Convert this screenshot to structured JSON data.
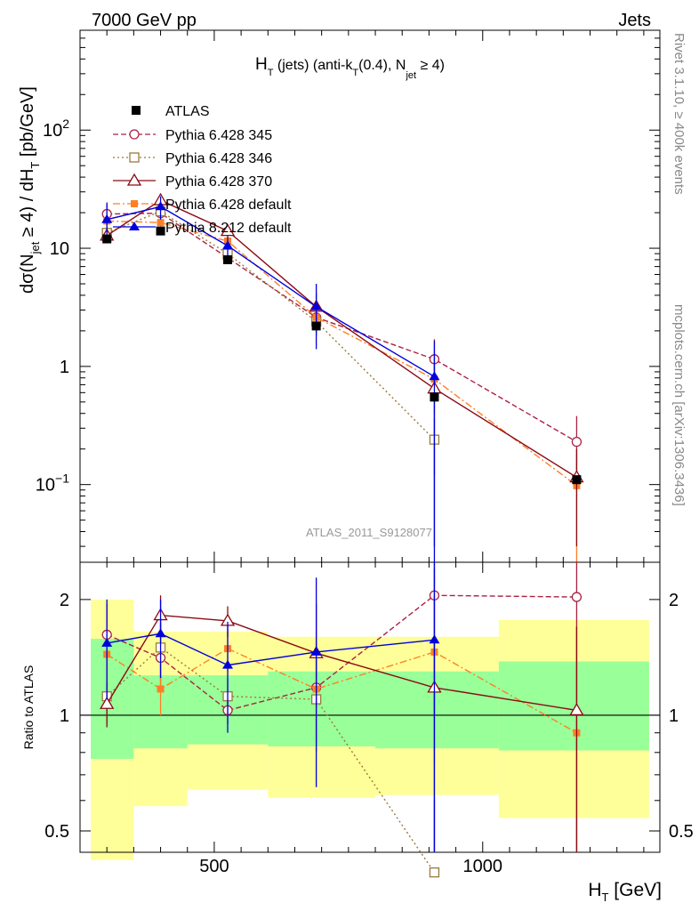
{
  "header": {
    "energy": "7000 GeV pp",
    "process": "Jets"
  },
  "side": {
    "rivet": "Rivet 3.1.10, ≥ 400k events",
    "source": "mcplots.cern.ch [arXiv:1306.3436]"
  },
  "colors": {
    "atlas": "#000000",
    "p345": "#aa2244",
    "p346": "#9a7a3a",
    "p370": "#8b0a14",
    "pdef": "#ff7f27",
    "p8": "#0000dd",
    "band_outer": "#ffff99",
    "band_inner": "#99ff99"
  },
  "chart_data": [
    {
      "type": "line",
      "panel": "main",
      "title": "H_T (jets) (anti-k_T(0.4), N_jet ≥ 4)",
      "title_parts": {
        "h": "H",
        "t1": "T",
        "mid": " (jets) (anti-k",
        "t2": "T",
        "mid2": "(0.4), N",
        "jet": "jet",
        "end": " ≥ 4)"
      },
      "ylabel_parts": {
        "a": "dσ(N",
        "jet": "jet",
        "b": " ≥ 4) / dH",
        "t": "T",
        "c": " [pb/GeV]"
      },
      "watermark": "ATLAS_2011_S9128077",
      "xscale": "linear",
      "xlim": [
        250,
        1330
      ],
      "yscale": "log",
      "ylim": [
        0.022,
        700
      ],
      "x_tick_labels": [
        500,
        1000
      ],
      "y_tick_labels": [
        {
          "v": 0.1,
          "base": "10",
          "exp": "−1"
        },
        {
          "v": 1,
          "base": "1",
          "exp": ""
        },
        {
          "v": 10,
          "base": "10",
          "exp": ""
        },
        {
          "v": 100,
          "base": "10",
          "exp": "2"
        }
      ],
      "x": [
        300,
        400,
        525,
        690,
        910,
        1175
      ],
      "series": [
        {
          "name": "ATLAS",
          "key": "atlas",
          "marker": "square",
          "dash": "",
          "line": false,
          "values": [
            12.0,
            14.0,
            8.0,
            2.2,
            0.55,
            0.11
          ],
          "err": [
            [
              11.5,
              12.5
            ],
            [
              13.5,
              14.5
            ],
            [
              7.7,
              8.3
            ],
            [
              2.1,
              2.3
            ],
            [
              0.52,
              0.58
            ],
            [
              0.105,
              0.115
            ]
          ]
        },
        {
          "name": "Pythia 6.428 345",
          "key": "p345",
          "marker": "circle",
          "dash": "6,3",
          "line": true,
          "values": [
            19.5,
            19.8,
            8.3,
            2.6,
            1.15,
            0.23
          ],
          "err": [
            [
              15.5,
              24.5
            ],
            [
              16.5,
              24.0
            ],
            [
              7.5,
              9.5
            ],
            [
              1.9,
              3.5
            ],
            [
              0.55,
              1.7
            ],
            [
              0.09,
              0.38
            ]
          ]
        },
        {
          "name": "Pythia 6.428 346",
          "key": "p346",
          "marker": "opensquare",
          "dash": "2,3",
          "line": true,
          "values": [
            13.5,
            20.5,
            9.0,
            2.4,
            0.24,
            null
          ],
          "err": [
            [
              11.5,
              16.0
            ],
            [
              17.0,
              24.0
            ],
            [
              8.0,
              10.5
            ],
            [
              1.8,
              3.2
            ],
            [
              0.12,
              0.36
            ],
            null
          ]
        },
        {
          "name": "Pythia 6.428 370",
          "key": "p370",
          "marker": "triangle",
          "dash": "",
          "line": true,
          "values": [
            12.8,
            25.5,
            14.0,
            3.2,
            0.65,
            0.115
          ],
          "err": [
            [
              11.0,
              15.0
            ],
            [
              22.0,
              29.0
            ],
            [
              12.5,
              15.5
            ],
            [
              2.3,
              4.2
            ],
            [
              0.03,
              1.3
            ],
            [
              0.03,
              0.2
            ]
          ]
        },
        {
          "name": "Pythia 6.428 default",
          "key": "pdef",
          "marker": "smallsquare",
          "dash": "8,3,2,3",
          "line": true,
          "values": [
            17.0,
            16.5,
            11.5,
            2.6,
            0.78,
            0.098
          ],
          "err": [
            [
              14.0,
              20.0
            ],
            [
              14.0,
              19.0
            ],
            [
              10.0,
              13.0
            ],
            [
              2.0,
              3.2
            ],
            [
              0.4,
              1.1
            ],
            [
              0.01,
              0.18
            ]
          ]
        },
        {
          "name": "Pythia 8.212 default",
          "key": "p8",
          "marker": "filltriangle",
          "dash": "",
          "line": true,
          "values": [
            17.5,
            22.5,
            10.5,
            3.2,
            0.82,
            null
          ],
          "err": [
            [
              12.5,
              24.0
            ],
            [
              17.5,
              27.5
            ],
            [
              8.0,
              12.5
            ],
            [
              1.4,
              5.0
            ],
            [
              0.02,
              1.65
            ],
            null
          ]
        }
      ]
    },
    {
      "type": "line",
      "panel": "ratio",
      "ylabel": "Ratio to ATLAS",
      "xlabel_parts": {
        "h": "H",
        "t": "T",
        "unit": " [GeV]"
      },
      "xlim": [
        250,
        1330
      ],
      "yscale": "log",
      "ylim": [
        0.44,
        2.5
      ],
      "y_tick_labels": [
        {
          "v": 0.5,
          "label": "0.5"
        },
        {
          "v": 1,
          "label": "1"
        },
        {
          "v": 2,
          "label": "2"
        }
      ],
      "reference": 1,
      "bins": [
        {
          "lo": 270,
          "hi": 350,
          "outer": [
            0.42,
            2.0
          ],
          "inner": [
            0.77,
            1.58
          ]
        },
        {
          "lo": 350,
          "hi": 450,
          "outer": [
            0.58,
            1.65
          ],
          "inner": [
            0.82,
            1.27
          ]
        },
        {
          "lo": 450,
          "hi": 600,
          "outer": [
            0.64,
            1.65
          ],
          "inner": [
            0.84,
            1.27
          ]
        },
        {
          "lo": 600,
          "hi": 800,
          "outer": [
            0.61,
            1.6
          ],
          "inner": [
            0.83,
            1.3
          ]
        },
        {
          "lo": 800,
          "hi": 1030,
          "outer": [
            0.62,
            1.6
          ],
          "inner": [
            0.82,
            1.3
          ]
        },
        {
          "lo": 1030,
          "hi": 1310,
          "outer": [
            0.54,
            1.77
          ],
          "inner": [
            0.81,
            1.38
          ]
        }
      ],
      "series": [
        {
          "key": "p345",
          "values": [
            1.62,
            1.41,
            1.03,
            1.18,
            2.05,
            2.03
          ],
          "err": [
            [
              1.3,
              1.95
            ],
            [
              1.15,
              1.72
            ],
            [
              0.95,
              1.15
            ],
            [
              0.85,
              1.55
            ],
            [
              1.0,
              2.6
            ],
            [
              0.3,
              2.5
            ]
          ]
        },
        {
          "key": "p346",
          "values": [
            1.12,
            1.5,
            1.12,
            1.1,
            0.39,
            null
          ],
          "err": [
            [
              0.95,
              1.3
            ],
            [
              1.25,
              1.75
            ],
            [
              1.0,
              1.25
            ],
            [
              0.8,
              1.4
            ],
            [
              0.2,
              0.6
            ],
            null
          ]
        },
        {
          "key": "p370",
          "values": [
            1.07,
            1.82,
            1.76,
            1.45,
            1.18,
            1.03
          ],
          "err": [
            [
              0.93,
              1.22
            ],
            [
              1.6,
              2.05
            ],
            [
              1.6,
              1.92
            ],
            [
              1.05,
              1.95
            ],
            [
              0.05,
              2.4
            ],
            [
              0.3,
              1.7
            ]
          ]
        },
        {
          "key": "pdef",
          "values": [
            1.44,
            1.17,
            1.49,
            1.17,
            1.46,
            0.9
          ],
          "err": [
            [
              1.2,
              1.7
            ],
            [
              1.0,
              1.38
            ],
            [
              1.3,
              1.65
            ],
            [
              0.9,
              1.45
            ],
            [
              0.75,
              2.05
            ],
            [
              0.1,
              1.7
            ]
          ]
        },
        {
          "key": "p8",
          "values": [
            1.54,
            1.63,
            1.35,
            1.46,
            1.57,
            null
          ],
          "err": [
            [
              1.1,
              2.0
            ],
            [
              1.25,
              2.0
            ],
            [
              0.9,
              1.75
            ],
            [
              0.65,
              2.28
            ],
            [
              0.02,
              2.5
            ],
            null
          ]
        }
      ]
    }
  ]
}
